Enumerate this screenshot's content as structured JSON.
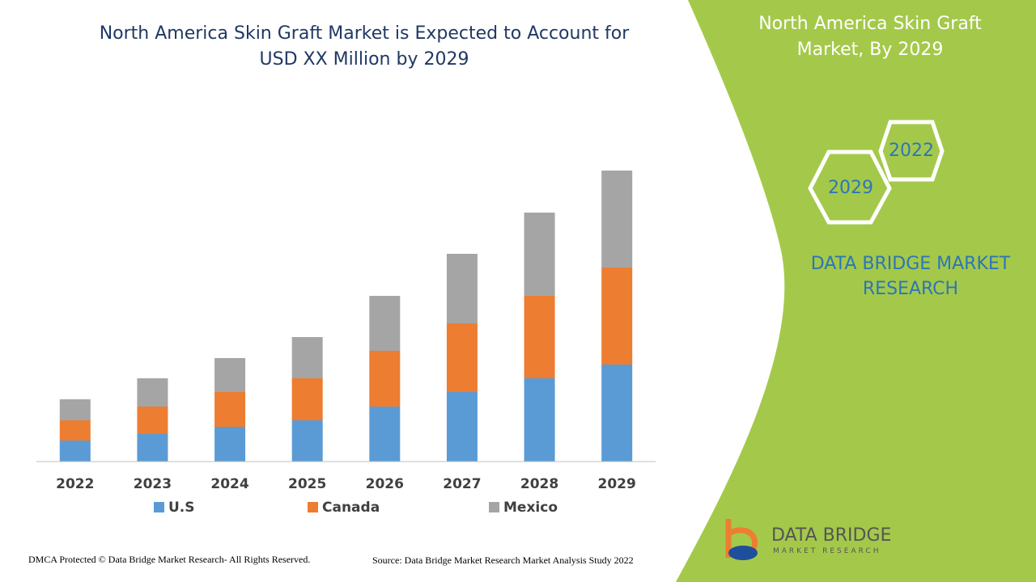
{
  "chart_data": {
    "type": "stacked_bar",
    "title": "North America Skin Graft Market is Expected to Account for USD XX Million by 2029",
    "categories": [
      "2022",
      "2023",
      "2024",
      "2025",
      "2026",
      "2027",
      "2028",
      "2029"
    ],
    "series": [
      {
        "name": "U.S",
        "color": "#5b9bd5",
        "values": [
          26,
          34,
          43,
          51,
          68,
          86,
          103,
          120
        ]
      },
      {
        "name": "Canada",
        "color": "#ed7d31",
        "values": [
          25,
          34,
          43,
          52,
          69,
          85,
          102,
          120
        ]
      },
      {
        "name": "Mexico",
        "color": "#a5a5a5",
        "values": [
          26,
          35,
          42,
          51,
          68,
          86,
          103,
          120
        ]
      }
    ],
    "ylim": [
      0,
      471
    ]
  },
  "panel": {
    "title": "North America Skin Graft Market, By 2029",
    "hex_top": "2022",
    "hex_bottom": "2029",
    "brand": "DATA BRIDGE MARKET RESEARCH"
  },
  "logo": {
    "name": "DATA BRIDGE",
    "tagline": "MARKET RESEARCH"
  },
  "footer": {
    "left": "DMCA Protected © Data Bridge Market Research- All Rights Reserved.",
    "right": "Source: Data Bridge Market Research Market Analysis Study 2022"
  }
}
